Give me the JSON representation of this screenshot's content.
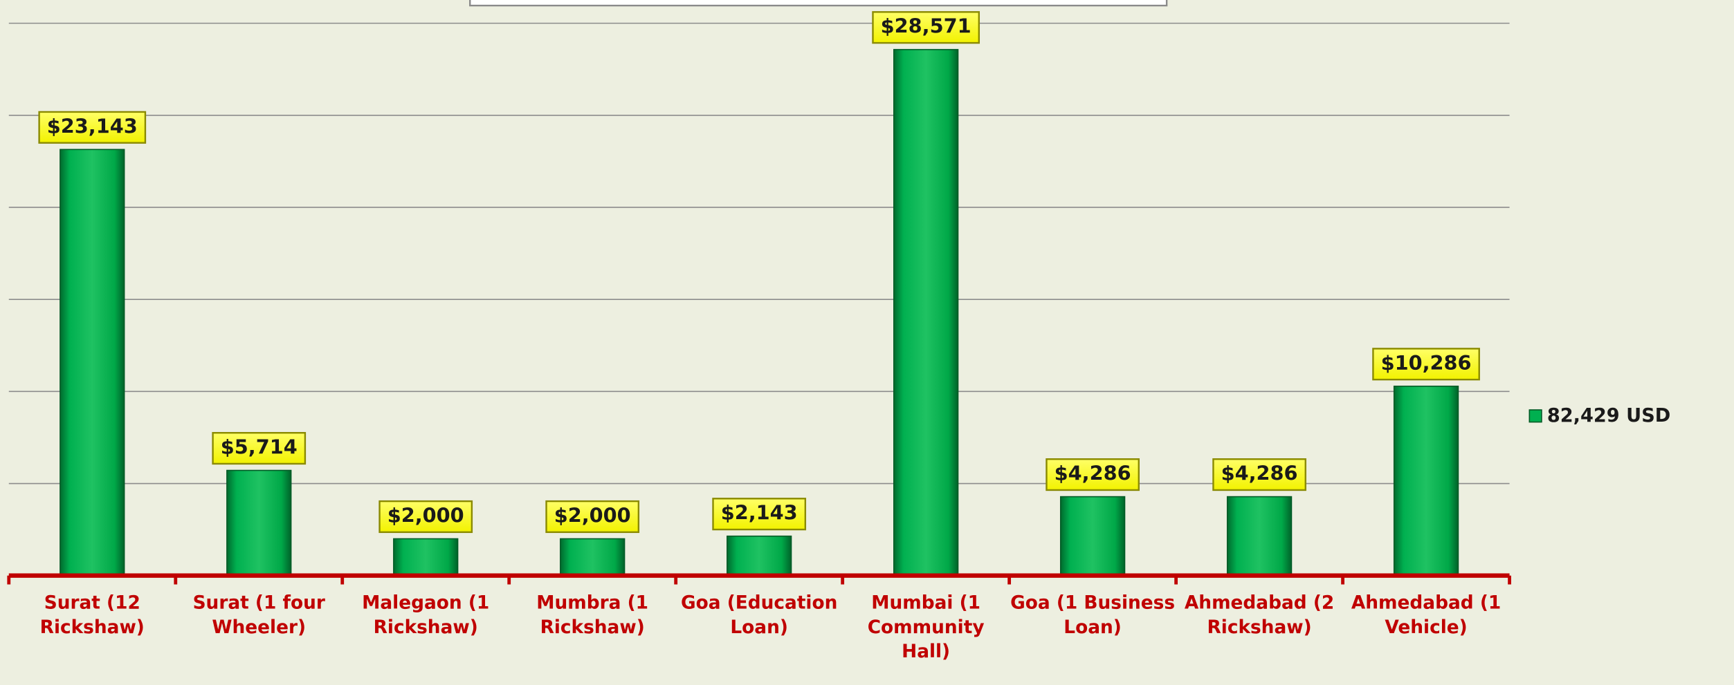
{
  "chart_data": {
    "type": "bar",
    "categories": [
      "Surat (12 Rickshaw)",
      "Surat (1 four Wheeler)",
      "Malegaon (1 Rickshaw)",
      "Mumbra (1 Rickshaw)",
      "Goa (Education Loan)",
      "Mumbai (1 Community Hall)",
      "Goa (1 Business Loan)",
      "Ahmedabad (2 Rickshaw)",
      "Ahmedabad (1 Vehicle)"
    ],
    "series": [
      {
        "name": "82,429 USD",
        "color": "#00b050",
        "values": [
          23143,
          5714,
          2000,
          2000,
          2143,
          28571,
          4286,
          4286,
          10286
        ],
        "value_labels": [
          "$23,143",
          "$5,714",
          "$2,000",
          "$2,000",
          "$2,143",
          "$28,571",
          "$4,286",
          "$4,286",
          "$10,286"
        ]
      }
    ],
    "ylim": [
      0,
      30000
    ],
    "yticks": [
      0,
      5000,
      10000,
      15000,
      20000,
      25000,
      30000
    ],
    "grid": true,
    "legend": "right"
  }
}
